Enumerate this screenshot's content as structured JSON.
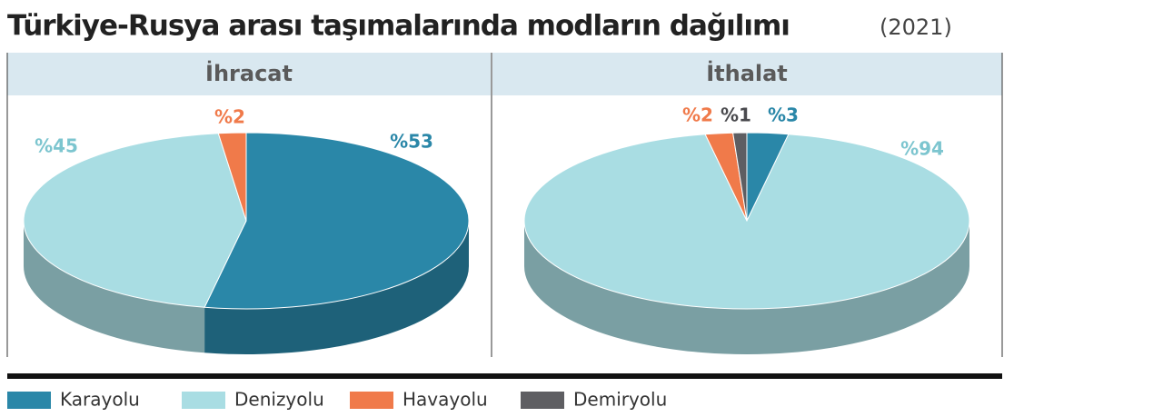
{
  "title": "Türkiye-Rusya arası taşımalarında modların dağılımı",
  "subtitle": "(2021)",
  "chart_data": [
    {
      "type": "pie",
      "title": "İhracat",
      "categories": [
        "Karayolu",
        "Denizyolu",
        "Havayolu"
      ],
      "values": [
        53,
        45,
        2
      ],
      "value_labels": [
        "%53",
        "%45",
        "%2"
      ],
      "colors": [
        "#2a87a8",
        "#a9dde3",
        "#f07a4a"
      ]
    },
    {
      "type": "pie",
      "title": "İthalat",
      "categories": [
        "Karayolu",
        "Denizyolu",
        "Havayolu",
        "Demiryolu"
      ],
      "values": [
        3,
        94,
        2,
        1
      ],
      "value_labels": [
        "%3",
        "%94",
        "%2",
        "%1"
      ],
      "colors": [
        "#2a87a8",
        "#a9dde3",
        "#f07a4a",
        "#5e5e62"
      ]
    }
  ]
}
